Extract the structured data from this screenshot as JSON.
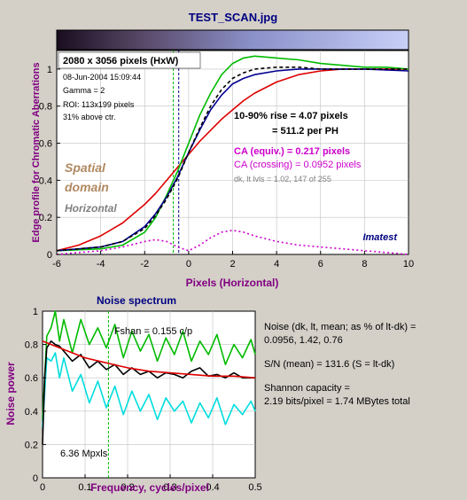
{
  "window_title": "TEST_SCAN.jpg",
  "colors": {
    "background": "#d4d0c8",
    "plot_background": "#ffffff",
    "title": "#000080",
    "axis_label": "#800080",
    "red": "#dd0000",
    "green": "#00bb00",
    "blue": "#000090",
    "black": "#000000",
    "cyan": "#00dddd",
    "magenta": "#cc00cc",
    "brown": "#b08860",
    "gray": "#808080",
    "imatest": "#000080"
  },
  "chart_data": [
    {
      "type": "line",
      "title": "",
      "xlabel": "Pixels (Horizontal)",
      "ylabel": "Edge profile for Chromatic Aberrations",
      "xlim": [
        -6,
        10
      ],
      "ylim": [
        0,
        1.1
      ],
      "xticks": [
        "-6",
        "-4",
        "-2",
        "0",
        "2",
        "4",
        "6",
        "8",
        "10"
      ],
      "yticks": [
        "0",
        "0.2",
        "0.4",
        "0.6",
        "0.8",
        "1"
      ],
      "grid": true,
      "vertical_markers": [
        -0.7,
        -0.45
      ],
      "series": [
        {
          "color": "red",
          "x": [
            -6,
            -5,
            -4,
            -3,
            -2.5,
            -2,
            -1.5,
            -1,
            -0.5,
            0,
            0.5,
            1,
            1.5,
            2,
            2.5,
            3,
            4,
            5,
            6,
            7,
            8,
            9,
            10
          ],
          "values": [
            0.02,
            0.05,
            0.1,
            0.17,
            0.22,
            0.27,
            0.33,
            0.4,
            0.47,
            0.54,
            0.61,
            0.67,
            0.73,
            0.78,
            0.83,
            0.87,
            0.93,
            0.97,
            0.99,
            1.0,
            1.0,
            1.0,
            1.0
          ]
        },
        {
          "color": "green",
          "x": [
            -6,
            -4,
            -3,
            -2,
            -1.5,
            -1,
            -0.5,
            0,
            0.5,
            1,
            1.5,
            2,
            2.5,
            3,
            4,
            5,
            6,
            7,
            8,
            9,
            10
          ],
          "values": [
            0.02,
            0.03,
            0.05,
            0.12,
            0.2,
            0.32,
            0.45,
            0.6,
            0.75,
            0.87,
            0.97,
            1.03,
            1.06,
            1.07,
            1.06,
            1.05,
            1.03,
            1.02,
            1.01,
            1.01,
            1.0
          ]
        },
        {
          "color": "blue",
          "x": [
            -6,
            -4,
            -3,
            -2,
            -1.5,
            -1,
            -0.5,
            0,
            0.5,
            1,
            1.5,
            2,
            2.5,
            3,
            4,
            5,
            6,
            8,
            10
          ],
          "values": [
            0.02,
            0.04,
            0.07,
            0.15,
            0.22,
            0.31,
            0.42,
            0.55,
            0.67,
            0.78,
            0.86,
            0.92,
            0.95,
            0.97,
            0.99,
            1.0,
            1.0,
            1.0,
            0.99
          ]
        },
        {
          "color": "black",
          "dashed": true,
          "x": [
            -6,
            -4,
            -3,
            -2,
            -1.5,
            -1,
            -0.5,
            0,
            0.5,
            1,
            1.5,
            2,
            2.5,
            3,
            4,
            5,
            6,
            8,
            10
          ],
          "values": [
            0.02,
            0.04,
            0.07,
            0.14,
            0.21,
            0.3,
            0.41,
            0.55,
            0.68,
            0.8,
            0.89,
            0.95,
            0.98,
            1.0,
            1.01,
            1.01,
            1.0,
            1.0,
            1.0
          ]
        },
        {
          "color": "magenta",
          "dotted": true,
          "x": [
            -6,
            -4,
            -3,
            -2,
            -1.5,
            -1,
            -0.5,
            0,
            0.5,
            1,
            1.5,
            2,
            2.5,
            3,
            4,
            5,
            6,
            7,
            8,
            9,
            10
          ],
          "values": [
            0.0,
            0.02,
            0.04,
            0.07,
            0.08,
            0.07,
            0.04,
            0.02,
            0.05,
            0.09,
            0.12,
            0.13,
            0.12,
            0.1,
            0.07,
            0.05,
            0.04,
            0.03,
            0.02,
            0.01,
            0.0
          ]
        }
      ],
      "annotations": {
        "dimensions": "2080 x 3056 pixels (HxW)",
        "date": "08-Jun-2004 15:09:44",
        "gamma": "Gamma = 2",
        "roi": "ROI: 113x199 pixels",
        "above_center": "31% above ctr.",
        "rise_line1": "10-90% rise = 4.07 pixels",
        "rise_line2": "= 511.2 per PH",
        "ca_equiv": "CA (equiv.) = 0.217 pixels",
        "ca_crossing": "CA (crossing) = 0.0952 pixels",
        "levels": "dk, lt lvls = 1.02, 147 of 255",
        "spatial_1": "Spatial",
        "spatial_2": "domain",
        "horizontal": "Horizontal",
        "imatest": "Imatest"
      }
    },
    {
      "type": "line",
      "title": "Noise spectrum",
      "xlabel": "Frequency, cycles/pixel",
      "ylabel": "Noise power",
      "xlim": [
        0,
        0.5
      ],
      "ylim": [
        0,
        1
      ],
      "xticks": [
        "0",
        "0.1",
        "0.2",
        "0.3",
        "0.4",
        "0.5"
      ],
      "yticks": [
        "0",
        "0.2",
        "0.4",
        "0.6",
        "0.8",
        "1"
      ],
      "grid": true,
      "vertical_markers": [
        0.155
      ],
      "series": [
        {
          "color": "green",
          "x": [
            0,
            0.01,
            0.02,
            0.03,
            0.04,
            0.05,
            0.07,
            0.09,
            0.11,
            0.13,
            0.15,
            0.17,
            0.19,
            0.21,
            0.23,
            0.25,
            0.27,
            0.29,
            0.31,
            0.33,
            0.35,
            0.37,
            0.39,
            0.41,
            0.43,
            0.45,
            0.47,
            0.49,
            0.5
          ],
          "values": [
            0.35,
            0.85,
            0.9,
            1.0,
            0.82,
            0.95,
            0.75,
            0.95,
            0.8,
            0.9,
            0.78,
            0.92,
            0.72,
            0.88,
            0.76,
            0.86,
            0.7,
            0.84,
            0.74,
            0.88,
            0.7,
            0.82,
            0.74,
            0.86,
            0.68,
            0.8,
            0.72,
            0.83,
            0.74
          ]
        },
        {
          "color": "cyan",
          "x": [
            0,
            0.01,
            0.02,
            0.03,
            0.04,
            0.05,
            0.07,
            0.09,
            0.11,
            0.13,
            0.15,
            0.17,
            0.19,
            0.21,
            0.23,
            0.25,
            0.27,
            0.29,
            0.31,
            0.33,
            0.35,
            0.37,
            0.39,
            0.41,
            0.43,
            0.45,
            0.47,
            0.49,
            0.5
          ],
          "values": [
            0.3,
            0.72,
            0.7,
            0.75,
            0.6,
            0.72,
            0.52,
            0.62,
            0.45,
            0.58,
            0.42,
            0.55,
            0.38,
            0.52,
            0.4,
            0.5,
            0.35,
            0.48,
            0.4,
            0.46,
            0.33,
            0.45,
            0.36,
            0.48,
            0.32,
            0.44,
            0.38,
            0.46,
            0.4
          ]
        },
        {
          "color": "black",
          "x": [
            0,
            0.005,
            0.01,
            0.02,
            0.03,
            0.04,
            0.05,
            0.07,
            0.09,
            0.11,
            0.13,
            0.15,
            0.17,
            0.19,
            0.21,
            0.23,
            0.25,
            0.27,
            0.29,
            0.31,
            0.33,
            0.35,
            0.37,
            0.39,
            0.41,
            0.43,
            0.45,
            0.47,
            0.5
          ],
          "values": [
            0.2,
            0.6,
            0.78,
            0.82,
            0.8,
            0.79,
            0.76,
            0.7,
            0.74,
            0.66,
            0.7,
            0.65,
            0.68,
            0.62,
            0.66,
            0.62,
            0.64,
            0.6,
            0.63,
            0.62,
            0.6,
            0.64,
            0.66,
            0.61,
            0.62,
            0.6,
            0.63,
            0.6,
            0.6
          ]
        },
        {
          "color": "red",
          "x": [
            0,
            0.05,
            0.1,
            0.15,
            0.2,
            0.25,
            0.3,
            0.35,
            0.4,
            0.45,
            0.5
          ],
          "values": [
            0.82,
            0.77,
            0.72,
            0.69,
            0.66,
            0.64,
            0.63,
            0.62,
            0.61,
            0.61,
            0.6
          ]
        }
      ],
      "annotations": {
        "fshan": "Fshan = 0.155 c/p",
        "mpxls": "6.36 Mpxls"
      }
    }
  ],
  "noise_text": {
    "line1": "Noise (dk, lt, mean; as % of lt-dk) =",
    "line2": "0.0956,  1.42,  0.76",
    "sn": "S/N (mean) = 131.6   (S = lt-dk)",
    "shannon1": "Shannon capacity =",
    "shannon2": "2.19 bits/pixel = 1.74 MBytes total"
  }
}
